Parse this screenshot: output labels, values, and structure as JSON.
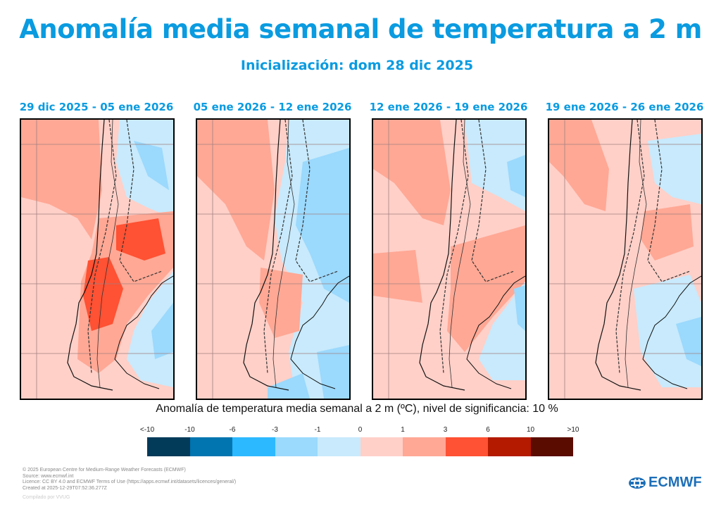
{
  "title": "Anomalía media semanal de temperatura a 2 m",
  "subtitle": "Inicialización: dom 28 dic 2025",
  "panels": [
    {
      "label": "29 dic 2025 - 05 ene 2026"
    },
    {
      "label": "05 ene 2026 - 12 ene 2026"
    },
    {
      "label": "12 ene 2026 - 19 ene 2026"
    },
    {
      "label": "19 ene 2026 - 26 ene 2026"
    }
  ],
  "chart_data": {
    "type": "heatmap",
    "variable": "Anomalía de temperatura media semanal a 2 m (ºC), nivel de significancia: 10 %",
    "colorbar": {
      "ticks": [
        "<-10",
        "-10",
        "-6",
        "-3",
        "-1",
        "0",
        "1",
        "3",
        "6",
        "10",
        ">10"
      ],
      "colors": [
        "#023a5a",
        "#0075b0",
        "#2db9ff",
        "#9bd9fd",
        "#c8eafc",
        "#ffd0c8",
        "#ffa895",
        "#ff5133",
        "#b31a00",
        "#5a0c00"
      ]
    }
  },
  "colorbar_caption": "Anomalía de temperatura media semanal a 2 m (ºC), nivel de significancia: 10 %",
  "footer": {
    "line1": "© 2025 European Centre for Medium-Range Weather Forecasts (ECMWF)",
    "line2": "Source: www.ecmwf.int",
    "line3": "Licence: CC BY 4.0 and ECMWF Terms of Use (https://apps.ecmwf.int/datasets/licences/general/)",
    "line4": "Created at 2025-12-29T07:52:36.277Z",
    "compiled": "Compilado por VVUG"
  },
  "logo": "ECMWF"
}
